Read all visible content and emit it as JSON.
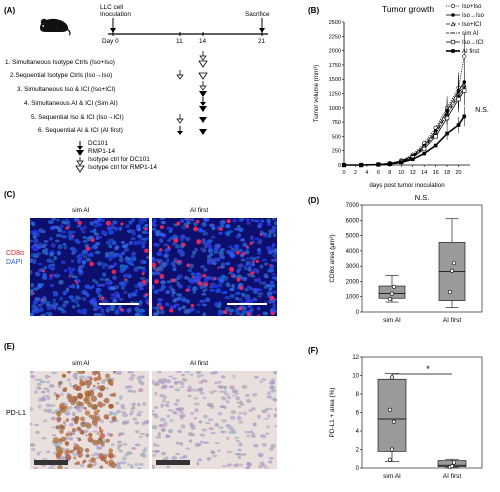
{
  "panel_a": {
    "label": "(A)",
    "top_labels": {
      "inoculation_line1": "LLC cell",
      "inoculation_line2": "Inoculation",
      "sacrifice": "Sacrifice"
    },
    "day_labels": [
      "Day 0",
      "11",
      "14",
      "21"
    ],
    "groups": [
      "1. Simultaneous Isotype Ctrls (Iso+Iso)",
      "2.Sequential Isotype Ctrls (Iso→Iso)",
      "3. Simultaneous Iso & ICI (Iso+ICI)",
      "4. Simultaneous AI & ICI (Sim AI)",
      "5. Sequential Iso & ICI (Iso→ICI)",
      "6. Sequential AI & ICI (AI first)"
    ],
    "legend": [
      "DC101",
      "RMP1-14",
      "Isotype ctrl for DC101",
      "Isotype ctrl for RMP1-14"
    ]
  },
  "panel_b": {
    "label": "(B)",
    "annotation": "N.S.",
    "chart_data": {
      "type": "line",
      "title": "Tumor growth",
      "xlabel": "days post tumor inoculation",
      "ylabel": "Tumor volume (mm³)",
      "xlim": [
        0,
        22
      ],
      "ylim": [
        0,
        2500
      ],
      "x_ticks": [
        "0",
        "2",
        "4",
        "6",
        "8",
        "10",
        "12",
        "14",
        "16",
        "18",
        "20"
      ],
      "y_ticks": [
        "0",
        "250",
        "500",
        "750",
        "1000",
        "1250",
        "1500",
        "1750",
        "2000",
        "2250",
        "2500"
      ],
      "x": [
        0,
        3,
        6,
        8,
        10,
        12,
        14,
        16,
        18,
        20,
        21
      ],
      "legend_position": "top-right",
      "series": [
        {
          "name": "Iso+Iso",
          "values": [
            0,
            0,
            10,
            30,
            80,
            180,
            380,
            650,
            1000,
            1350,
            1900
          ]
        },
        {
          "name": "Iso→Iso",
          "values": [
            0,
            0,
            10,
            25,
            70,
            160,
            340,
            600,
            950,
            1300,
            1450
          ]
        },
        {
          "name": "Iso+ICI",
          "values": [
            0,
            0,
            10,
            25,
            65,
            150,
            320,
            560,
            900,
            1250,
            1400
          ]
        },
        {
          "name": "sim AI",
          "values": [
            0,
            0,
            10,
            22,
            60,
            140,
            300,
            540,
            880,
            1200,
            1350
          ]
        },
        {
          "name": "Iso→ICI",
          "values": [
            0,
            0,
            10,
            20,
            55,
            130,
            280,
            500,
            820,
            1150,
            1300
          ]
        },
        {
          "name": "AI first",
          "values": [
            0,
            0,
            8,
            18,
            45,
            100,
            200,
            340,
            550,
            700,
            850
          ]
        }
      ]
    }
  },
  "panel_c": {
    "label": "(C)",
    "stain1": "CD8α",
    "stain2": "DAPI",
    "images": [
      "sim AI",
      "AI first"
    ]
  },
  "panel_d": {
    "label": "(D)",
    "annotation": "N.S.",
    "chart_data": {
      "type": "box",
      "ylabel": "CD8α area (μm²)",
      "ylim": [
        0,
        7000
      ],
      "y_ticks": [
        "0",
        "1000",
        "2000",
        "3000",
        "4000",
        "5000",
        "6000",
        "7000"
      ],
      "categories": [
        "sim AI",
        "AI first"
      ],
      "boxes": [
        {
          "whisker_low": 650,
          "q1": 900,
          "median": 1200,
          "q3": 1700,
          "whisker_high": 2400,
          "points": [
            850,
            1200,
            1650
          ]
        },
        {
          "whisker_low": 300,
          "q1": 750,
          "median": 2650,
          "q3": 4550,
          "whisker_high": 6100,
          "points": [
            1300,
            2700,
            3200
          ]
        }
      ]
    }
  },
  "panel_e": {
    "label": "(E)",
    "stain": "PD-L1",
    "images": [
      "sim AI",
      "AI first"
    ]
  },
  "panel_f": {
    "label": "(F)",
    "annotation": "*",
    "chart_data": {
      "type": "box",
      "ylabel": "PD-L1 + area (%)",
      "ylim": [
        0,
        12
      ],
      "y_ticks": [
        "0",
        "2",
        "4",
        "6",
        "8",
        "10",
        "12"
      ],
      "categories": [
        "sim AI",
        "AI first"
      ],
      "boxes": [
        {
          "whisker_low": 0.7,
          "q1": 1.8,
          "median": 5.3,
          "q3": 9.6,
          "whisker_high": 10.2,
          "points": [
            0.9,
            2.0,
            5.0,
            6.3,
            9.8
          ]
        },
        {
          "whisker_low": 0.05,
          "q1": 0.15,
          "median": 0.3,
          "q3": 0.8,
          "whisker_high": 0.95,
          "points": [
            0.1,
            0.2,
            0.6
          ]
        }
      ]
    }
  }
}
